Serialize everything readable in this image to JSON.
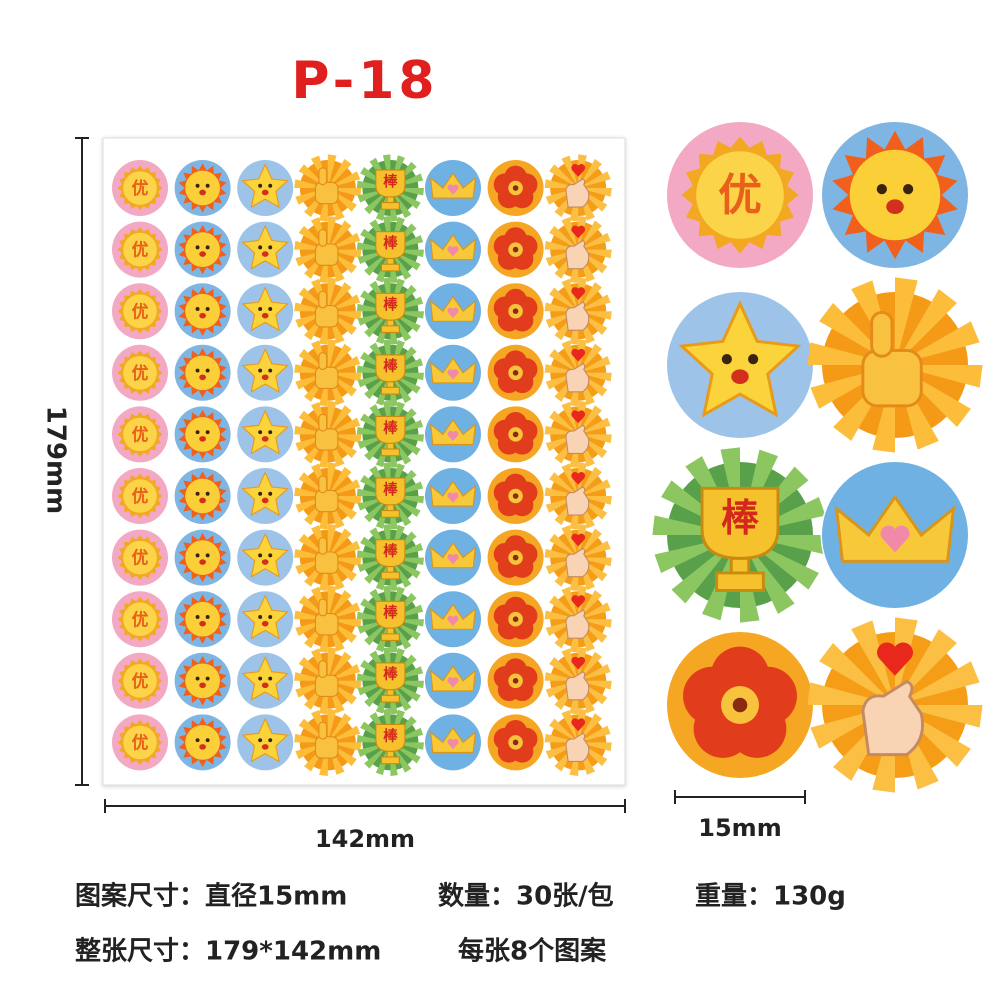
{
  "header": {
    "title": "P-18"
  },
  "dimensions": {
    "height": "179mm",
    "width": "142mm",
    "diameter": "15mm"
  },
  "sticker_labels": {
    "medal": "优",
    "trophy": "棒"
  },
  "specs": [
    [
      "图案尺寸：直径15mm",
      "数量：30张/包",
      "重量：130g"
    ],
    [
      "整张尺寸：179*142mm",
      "每张8个图案"
    ]
  ]
}
